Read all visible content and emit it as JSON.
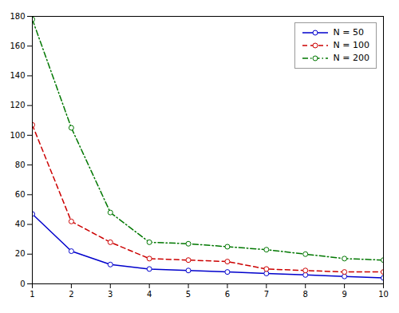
{
  "chart_data": {
    "type": "line",
    "x": [
      1,
      2,
      3,
      4,
      5,
      6,
      7,
      8,
      9,
      10
    ],
    "series": [
      {
        "name": "N = 50",
        "color": "#0000cc",
        "values": [
          47,
          22,
          13,
          10,
          9,
          8,
          7,
          6,
          5,
          4
        ],
        "line_style": "solid",
        "marker": "circle"
      },
      {
        "name": "N = 100",
        "color": "#cc0000",
        "values": [
          107,
          42,
          28,
          17,
          16,
          15,
          10,
          9,
          8,
          8
        ],
        "line_style": "dashed",
        "marker": "circle"
      },
      {
        "name": "N = 200",
        "color": "#007700",
        "values": [
          178,
          105,
          48,
          28,
          27,
          25,
          23,
          20,
          17,
          16
        ],
        "line_style": "dashdot",
        "marker": "circle"
      }
    ],
    "xlim": [
      1,
      10
    ],
    "ylim": [
      0,
      180
    ],
    "xticks": [
      1,
      2,
      3,
      4,
      5,
      6,
      7,
      8,
      9,
      10
    ],
    "yticks": [
      0,
      20,
      40,
      60,
      80,
      100,
      120,
      140,
      160,
      180
    ],
    "grid": false,
    "legend": "upper right"
  }
}
